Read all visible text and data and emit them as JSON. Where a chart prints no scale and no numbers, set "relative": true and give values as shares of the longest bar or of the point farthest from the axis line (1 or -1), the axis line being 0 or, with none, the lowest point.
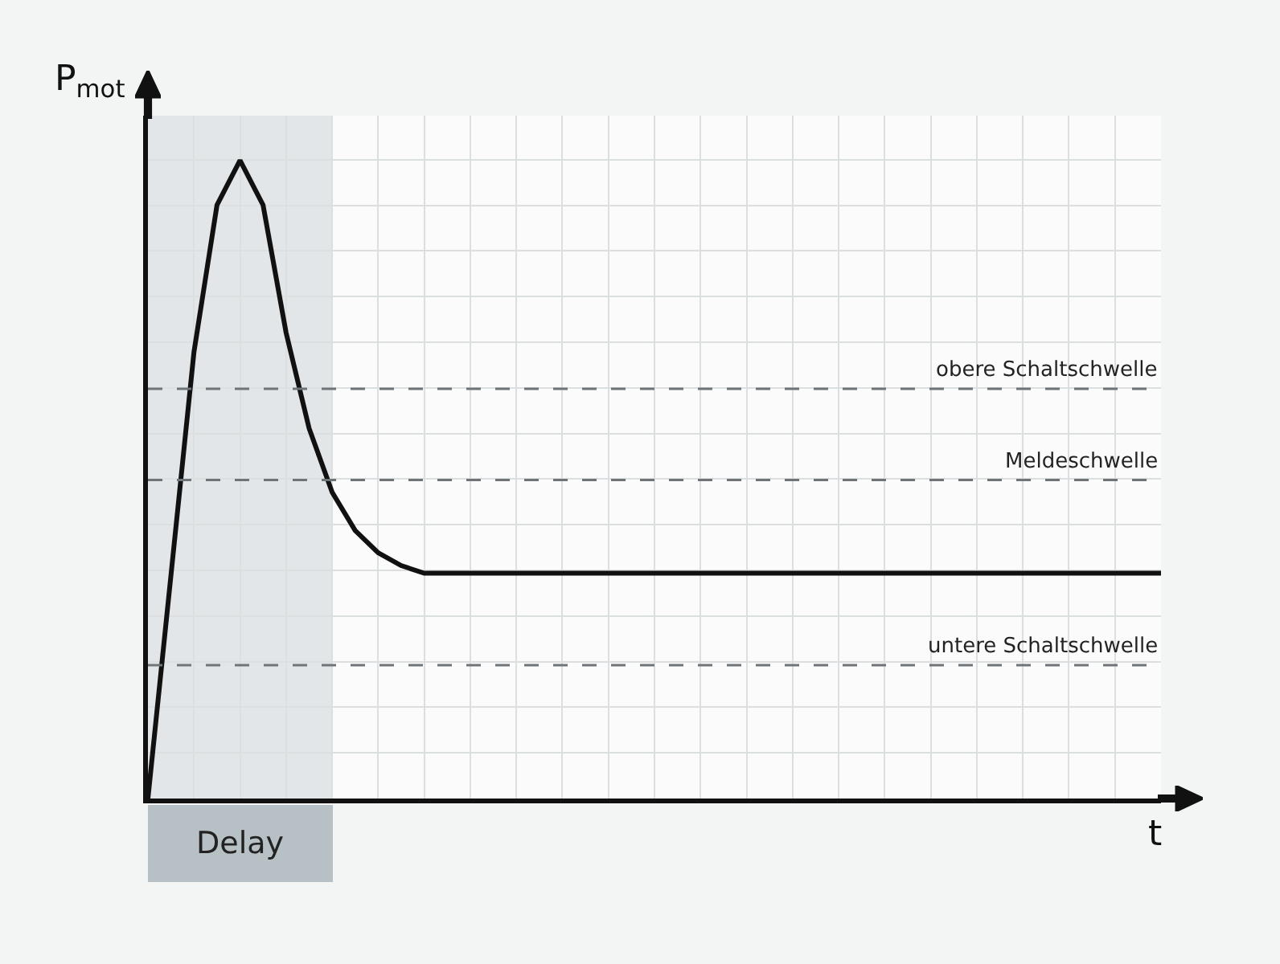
{
  "chart_data": {
    "type": "line",
    "relative": true,
    "xlabel": "t",
    "ylabel": "P$_{mot}$",
    "categories": [
      null,
      null,
      null,
      null,
      null,
      null,
      null,
      null,
      null,
      null,
      null,
      null,
      null,
      null,
      null,
      null,
      null,
      null,
      null,
      null,
      null,
      null,
      null,
      null,
      null,
      null,
      null,
      null,
      null,
      null,
      null,
      null,
      null,
      null,
      null,
      null,
      null,
      null,
      null,
      null,
      null,
      null,
      null,
      null,
      null
    ],
    "series": [
      {
        "color": "#111111",
        "values": [
          0,
          0.35,
          0.7,
          0.93,
          1,
          0.93,
          0.73,
          0.58,
          0.48,
          0.42,
          0.385,
          0.365,
          0.353,
          0.353,
          0.353,
          0.353,
          0.353,
          0.353,
          0.353,
          0.353,
          0.353,
          0.353,
          0.353,
          0.353,
          0.353,
          0.353,
          0.353,
          0.353,
          0.353,
          0.353,
          0.353,
          0.353,
          0.353,
          0.353,
          0.353,
          0.353,
          0.353,
          0.353,
          0.353,
          0.353,
          0.353,
          0.353,
          0.353,
          0.353,
          0.353
        ]
      }
    ],
    "ref_lines": [
      {
        "axis": "y",
        "value": 0.642,
        "label": "obere Schaltschwelle",
        "color": "#6f7478",
        "line_style": "dashed"
      },
      {
        "axis": "y",
        "value": 0.499,
        "label": "Meldeschwelle",
        "color": "#6f7478",
        "line_style": "dashed"
      },
      {
        "axis": "y",
        "value": 0.209,
        "label": "untere Schaltschwelle",
        "color": "#6f7478",
        "line_style": "dashed"
      }
    ],
    "annotations": [
      "Delay"
    ],
    "grid": true,
    "line_style": "solid",
    "marker": "none"
  }
}
